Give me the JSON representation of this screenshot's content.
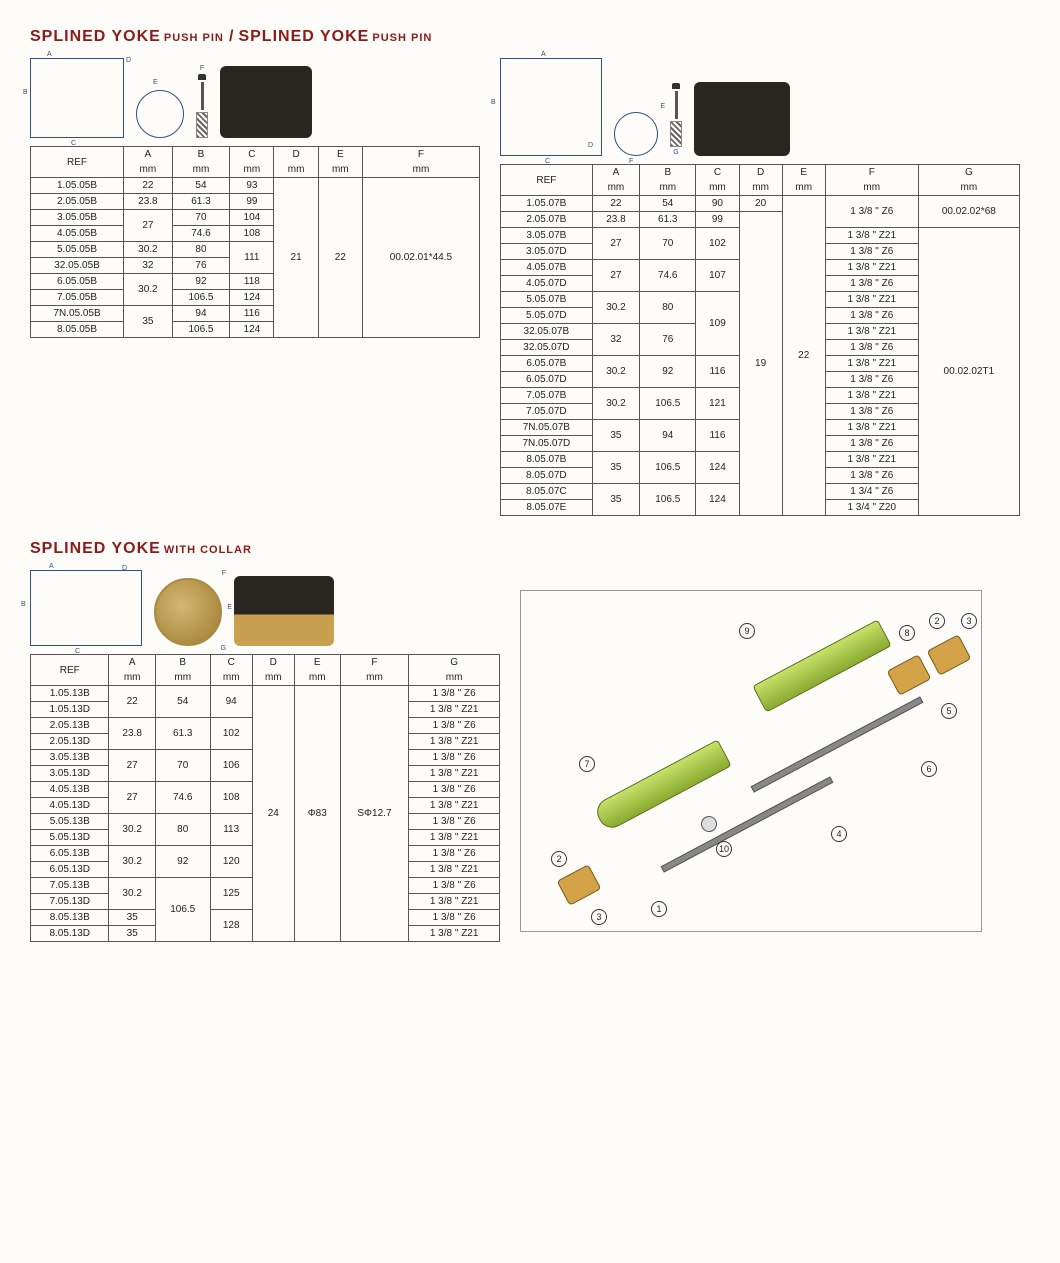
{
  "header": {
    "t1_big": "SPLINED YOKE",
    "t1_small": "PUSH PIN",
    "t2_big": "SPLINED YOKE",
    "t2_small": "PUSH PIN"
  },
  "header2": {
    "big": "SPLINED YOKE",
    "small": "WITH COLLAR"
  },
  "columns1": [
    "REF",
    "A\nmm",
    "B\nmm",
    "C\nmm",
    "D\nmm",
    "E\nmm",
    "F\nmm"
  ],
  "columns2": [
    "REF",
    "A\nmm",
    "B\nmm",
    "C\nmm",
    "D\nmm",
    "E\nmm",
    "F\nmm",
    "G\nmm"
  ],
  "columns3": [
    "REF",
    "A\nmm",
    "B\nmm",
    "C\nmm",
    "D\nmm",
    "E\nmm",
    "F\nmm",
    "G\nmm"
  ],
  "table1": {
    "rows": [
      [
        "1.05.05B",
        "22",
        "54",
        "93"
      ],
      [
        "2.05.05B",
        "23.8",
        "61.3",
        "99"
      ],
      [
        "3.05.05B",
        "27",
        "70",
        "104"
      ],
      [
        "4.05.05B",
        "27",
        "74.6",
        "108"
      ],
      [
        "5.05.05B",
        "30.2",
        "80",
        "111"
      ],
      [
        "32.05.05B",
        "32",
        "76",
        "111"
      ],
      [
        "6.05.05B",
        "30.2",
        "92",
        "118"
      ],
      [
        "7.05.05B",
        "30.2",
        "106.5",
        "124"
      ],
      [
        "7N.05.05B",
        "35",
        "94",
        "116"
      ],
      [
        "8.05.05B",
        "35",
        "106.5",
        "124"
      ]
    ],
    "D": "21",
    "E": "22",
    "F": "00.02.01*44.5",
    "merges": {
      "a34": "27",
      "c56": "111",
      "a78": "30.2",
      "a910": "35"
    }
  },
  "table2": {
    "rows": [
      [
        "1.05.07B",
        "22",
        "54",
        "90",
        "20",
        "",
        "1 3/8 \" Z6",
        "00.02.02*68"
      ],
      [
        "2.05.07B",
        "23.8",
        "61.3",
        "99",
        "",
        "",
        "1 3/8 \" Z6",
        ""
      ],
      [
        "3.05.07B",
        "27",
        "70",
        "102",
        "",
        "",
        "1 3/8 \" Z21",
        ""
      ],
      [
        "3.05.07D",
        "27",
        "70",
        "102",
        "",
        "",
        "1 3/8 \" Z6",
        ""
      ],
      [
        "4.05.07B",
        "27",
        "74.6",
        "107",
        "",
        "",
        "1 3/8 \" Z21",
        ""
      ],
      [
        "4.05.07D",
        "27",
        "74.6",
        "107",
        "",
        "",
        "1 3/8 \" Z6",
        ""
      ],
      [
        "5.05.07B",
        "30.2",
        "80",
        "109",
        "",
        "",
        "1 3/8 \" Z21",
        ""
      ],
      [
        "5.05.07D",
        "30.2",
        "80",
        "109",
        "",
        "",
        "1 3/8 \" Z6",
        ""
      ],
      [
        "32.05.07B",
        "32",
        "76",
        "109",
        "",
        "",
        "1 3/8 \" Z21",
        ""
      ],
      [
        "32.05.07D",
        "32",
        "76",
        "109",
        "",
        "",
        "1 3/8 \" Z6",
        ""
      ],
      [
        "6.05.07B",
        "30.2",
        "92",
        "116",
        "",
        "",
        "1 3/8 \" Z21",
        ""
      ],
      [
        "6.05.07D",
        "30.2",
        "92",
        "116",
        "",
        "",
        "1 3/8 \" Z6",
        ""
      ],
      [
        "7.05.07B",
        "30.2",
        "106.5",
        "121",
        "",
        "",
        "1 3/8 \" Z21",
        ""
      ],
      [
        "7.05.07D",
        "30.2",
        "106.5",
        "121",
        "",
        "",
        "1 3/8 \" Z6",
        ""
      ],
      [
        "7N.05.07B",
        "35",
        "94",
        "116",
        "",
        "",
        "1 3/8 \" Z21",
        ""
      ],
      [
        "7N.05.07D",
        "35",
        "94",
        "116",
        "",
        "",
        "1 3/8 \" Z6",
        ""
      ],
      [
        "8.05.07B",
        "35",
        "106.5",
        "124",
        "",
        "",
        "1 3/8 \" Z21",
        ""
      ],
      [
        "8.05.07D",
        "35",
        "106.5",
        "124",
        "",
        "",
        "1 3/8 \" Z6",
        ""
      ],
      [
        "8.05.07C",
        "35",
        "106.5",
        "124",
        "",
        "",
        "1 3/4 \" Z6",
        ""
      ],
      [
        "8.05.07E",
        "35",
        "106.5",
        "124",
        "",
        "",
        "1 3/4 \" Z20",
        ""
      ]
    ],
    "D": "19",
    "E": "22",
    "G1": "00.02.02*68",
    "G2": "00.02.02T1"
  },
  "table3": {
    "rows": [
      [
        "1.05.13B",
        "22",
        "54",
        "94",
        "1 3/8 \" Z6"
      ],
      [
        "1.05.13D",
        "22",
        "54",
        "94",
        "1 3/8 \" Z21"
      ],
      [
        "2.05.13B",
        "23.8",
        "61.3",
        "102",
        "1 3/8 \" Z6"
      ],
      [
        "2.05.13D",
        "23.8",
        "61.3",
        "102",
        "1 3/8 \" Z21"
      ],
      [
        "3.05.13B",
        "27",
        "70",
        "106",
        "1 3/8 \" Z6"
      ],
      [
        "3.05.13D",
        "27",
        "70",
        "106",
        "1 3/8 \" Z21"
      ],
      [
        "4.05.13B",
        "27",
        "74.6",
        "108",
        "1 3/8 \" Z6"
      ],
      [
        "4.05.13D",
        "27",
        "74.6",
        "108",
        "1 3/8 \" Z21"
      ],
      [
        "5.05.13B",
        "30.2",
        "80",
        "113",
        "1 3/8 \" Z6"
      ],
      [
        "5.05.13D",
        "30.2",
        "80",
        "113",
        "1 3/8 \" Z21"
      ],
      [
        "6.05.13B",
        "30.2",
        "92",
        "120",
        "1 3/8 \" Z6"
      ],
      [
        "6.05.13D",
        "30.2",
        "92",
        "120",
        "1 3/8 \" Z21"
      ],
      [
        "7.05.13B",
        "30.2",
        "106.5",
        "125",
        "1 3/8 \" Z6"
      ],
      [
        "7.05.13D",
        "30.2",
        "106.5",
        "125",
        "1 3/8 \" Z21"
      ],
      [
        "8.05.13B",
        "35",
        "106.5",
        "128",
        "1 3/8 \" Z6"
      ],
      [
        "8.05.13D",
        "35",
        "106.5",
        "128",
        "1 3/8 \" Z21"
      ]
    ],
    "D": "24",
    "E": "Φ83",
    "F": "SΦ12.7"
  },
  "exploded_labels": [
    "1",
    "2",
    "3",
    "4",
    "5",
    "6",
    "7",
    "8",
    "9",
    "10"
  ],
  "diagram_labels": {
    "A": "A",
    "B": "B",
    "C": "C",
    "D": "D",
    "E": "E",
    "F": "F",
    "G": "G"
  }
}
